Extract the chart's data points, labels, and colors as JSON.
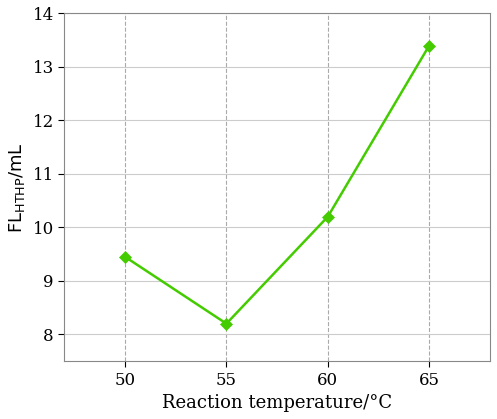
{
  "x": [
    50,
    55,
    60,
    65
  ],
  "y": [
    9.45,
    8.2,
    10.2,
    13.4
  ],
  "xlabel": "Reaction temperature/°C",
  "ylabel_main": "FL",
  "ylabel_sub": "HTHP",
  "ylabel_unit": "/mL",
  "xlim": [
    47,
    68
  ],
  "ylim": [
    7.5,
    14
  ],
  "yticks": [
    8,
    9,
    10,
    11,
    12,
    13,
    14
  ],
  "xticks": [
    50,
    55,
    60,
    65
  ],
  "line_color": "#44cc00",
  "marker_color": "#44cc00",
  "marker": "D",
  "marker_size": 6,
  "line_width": 1.8,
  "hgrid_color": "#cccccc",
  "vgrid_color": "#aaaaaa",
  "spine_color": "#888888",
  "background_color": "#ffffff",
  "xlabel_fontsize": 13,
  "ylabel_fontsize": 13,
  "tick_fontsize": 12
}
